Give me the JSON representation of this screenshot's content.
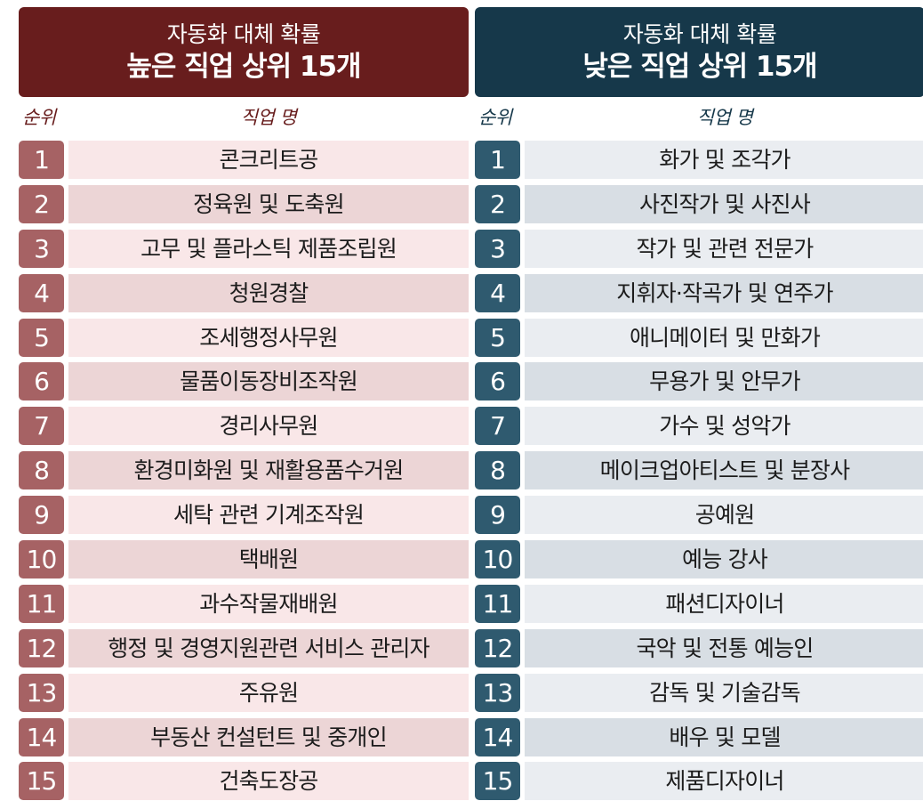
{
  "high": {
    "title_line1": "자동화 대체 확률",
    "title_line2": "높은 직업 상위 15개",
    "col_rank": "순위",
    "col_name": "직업 명",
    "colors": {
      "header": "#681d1d",
      "rank_badge": "#a66264",
      "row_light": "#f9e7e8",
      "row_dark": "#ecd5d6"
    },
    "rows": [
      {
        "rank": "1",
        "name": "콘크리트공"
      },
      {
        "rank": "2",
        "name": "정육원 및 도축원"
      },
      {
        "rank": "3",
        "name": "고무 및 플라스틱 제품조립원"
      },
      {
        "rank": "4",
        "name": "청원경찰"
      },
      {
        "rank": "5",
        "name": "조세행정사무원"
      },
      {
        "rank": "6",
        "name": "물품이동장비조작원"
      },
      {
        "rank": "7",
        "name": "경리사무원"
      },
      {
        "rank": "8",
        "name": "환경미화원 및 재활용품수거원"
      },
      {
        "rank": "9",
        "name": "세탁 관련 기계조작원"
      },
      {
        "rank": "10",
        "name": "택배원"
      },
      {
        "rank": "11",
        "name": "과수작물재배원"
      },
      {
        "rank": "12",
        "name": "행정 및 경영지원관련 서비스 관리자"
      },
      {
        "rank": "13",
        "name": "주유원"
      },
      {
        "rank": "14",
        "name": "부동산 컨설턴트 및 중개인"
      },
      {
        "rank": "15",
        "name": "건축도장공"
      }
    ]
  },
  "low": {
    "title_line1": "자동화 대체 확률",
    "title_line2": "낮은 직업 상위 15개",
    "col_rank": "순위",
    "col_name": "직업 명",
    "colors": {
      "header": "#16384a",
      "rank_badge": "#2f5a6f",
      "row_light": "#eaedf1",
      "row_dark": "#d8dee4"
    },
    "rows": [
      {
        "rank": "1",
        "name": "화가 및 조각가"
      },
      {
        "rank": "2",
        "name": "사진작가 및 사진사"
      },
      {
        "rank": "3",
        "name": "작가 및 관련 전문가"
      },
      {
        "rank": "4",
        "name": "지휘자·작곡가 및 연주가"
      },
      {
        "rank": "5",
        "name": "애니메이터 및 만화가"
      },
      {
        "rank": "6",
        "name": "무용가 및 안무가"
      },
      {
        "rank": "7",
        "name": "가수 및 성악가"
      },
      {
        "rank": "8",
        "name": "메이크업아티스트 및 분장사"
      },
      {
        "rank": "9",
        "name": "공예원"
      },
      {
        "rank": "10",
        "name": "예능 강사"
      },
      {
        "rank": "11",
        "name": "패션디자이너"
      },
      {
        "rank": "12",
        "name": "국악 및 전통 예능인"
      },
      {
        "rank": "13",
        "name": "감독 및 기술감독"
      },
      {
        "rank": "14",
        "name": "배우 및 모델"
      },
      {
        "rank": "15",
        "name": "제품디자이너"
      }
    ]
  }
}
